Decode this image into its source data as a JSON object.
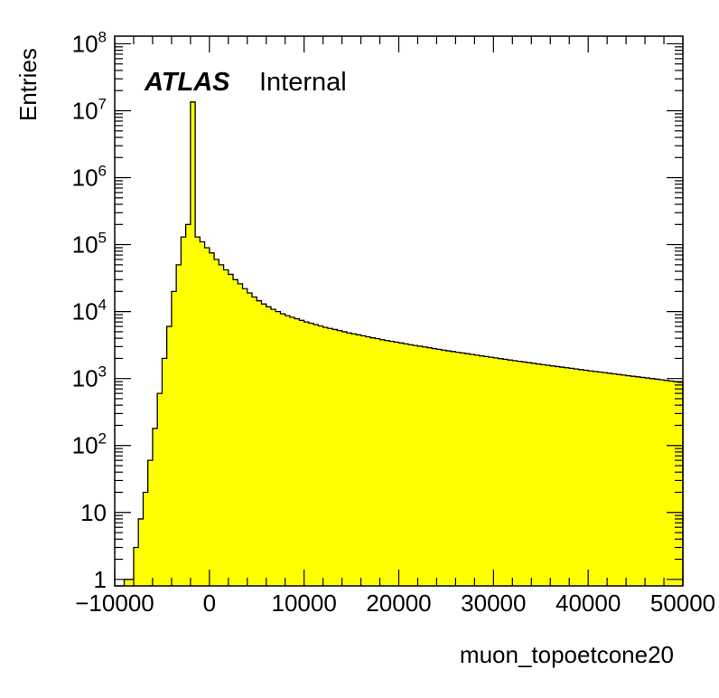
{
  "chart_data": {
    "type": "bar",
    "style": "filled-step-histogram",
    "fill_color": "#ffff00",
    "line_color": "#000000",
    "xlabel": "muon_topoetcone20",
    "ylabel": "Entries",
    "atlas_label": "ATLAS",
    "atlas_status": "Internal",
    "xlim": [
      -10000,
      50000
    ],
    "ylim": [
      0.8,
      130000000
    ],
    "yscale": "log",
    "grid": false,
    "x_ticks": [
      {
        "value": -10000,
        "label": "−10000"
      },
      {
        "value": 0,
        "label": "0"
      },
      {
        "value": 10000,
        "label": "10000"
      },
      {
        "value": 20000,
        "label": "20000"
      },
      {
        "value": 30000,
        "label": "30000"
      },
      {
        "value": 40000,
        "label": "40000"
      },
      {
        "value": 50000,
        "label": "50000"
      }
    ],
    "y_ticks": [
      {
        "value": 1,
        "base": "1",
        "exp": ""
      },
      {
        "value": 10,
        "base": "10",
        "exp": ""
      },
      {
        "value": 100,
        "base": "10",
        "exp": "2"
      },
      {
        "value": 1000,
        "base": "10",
        "exp": "3"
      },
      {
        "value": 10000,
        "base": "10",
        "exp": "4"
      },
      {
        "value": 100000,
        "base": "10",
        "exp": "5"
      },
      {
        "value": 1000000,
        "base": "10",
        "exp": "6"
      },
      {
        "value": 10000000,
        "base": "10",
        "exp": "7"
      },
      {
        "value": 100000000,
        "base": "10",
        "exp": "8"
      }
    ],
    "bin_width": 500,
    "bin_start": -10000,
    "values": [
      0,
      0,
      1,
      1,
      3,
      8,
      20,
      60,
      180,
      600,
      2000,
      6000,
      20000,
      50000,
      130000,
      200000,
      13500000,
      130000,
      110000,
      90000,
      75000,
      60000,
      50000,
      42000,
      36000,
      30000,
      26000,
      22000,
      19000,
      16500,
      14500,
      13000,
      11800,
      10800,
      10000,
      9300,
      8700,
      8200,
      7800,
      7400,
      7000,
      6700,
      6400,
      6100,
      5800,
      5600,
      5400,
      5200,
      5000,
      4800,
      4650,
      4500,
      4350,
      4200,
      4050,
      3950,
      3800,
      3700,
      3600,
      3500,
      3400,
      3300,
      3200,
      3120,
      3040,
      2960,
      2880,
      2800,
      2730,
      2660,
      2590,
      2530,
      2470,
      2410,
      2350,
      2290,
      2240,
      2180,
      2130,
      2080,
      2030,
      1980,
      1940,
      1890,
      1850,
      1810,
      1770,
      1730,
      1690,
      1650,
      1610,
      1580,
      1540,
      1510,
      1480,
      1450,
      1420,
      1390,
      1360,
      1330,
      1300,
      1275,
      1250,
      1225,
      1200,
      1175,
      1150,
      1125,
      1100,
      1080,
      1060,
      1040,
      1020,
      1000,
      980,
      960,
      940,
      920,
      900,
      880
    ]
  }
}
